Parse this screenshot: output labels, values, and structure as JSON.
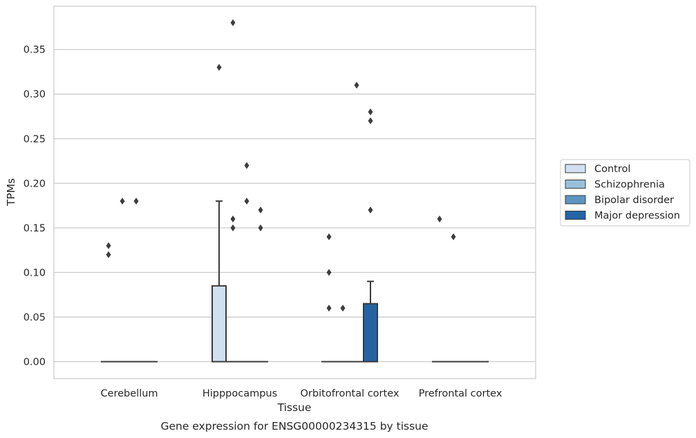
{
  "chart_data": {
    "type": "box",
    "title": "",
    "caption": "Gene expression for ENSG00000234315 by tissue",
    "xlabel": "Tissue",
    "ylabel": "TPMs",
    "ylim": [
      -0.018,
      0.397
    ],
    "yticks": [
      0.0,
      0.05,
      0.1,
      0.15,
      0.2,
      0.25,
      0.3,
      0.35
    ],
    "ytick_labels": [
      "0.00",
      "0.05",
      "0.10",
      "0.15",
      "0.20",
      "0.25",
      "0.30",
      "0.35"
    ],
    "categories": [
      "Cerebellum",
      "Hipppocampus",
      "Orbitofrontal cortex",
      "Prefrontal cortex"
    ],
    "grid": "horizontal",
    "legend_position": "right",
    "series": [
      {
        "name": "Control",
        "color": "#d0e0f0",
        "boxes": [
          {
            "q1": 0,
            "median": 0,
            "q3": 0,
            "whisker_low": 0,
            "whisker_high": 0,
            "outliers": [
              0.12,
              0.13
            ]
          },
          {
            "q1": 0,
            "median": 0,
            "q3": 0.085,
            "whisker_low": 0,
            "whisker_high": 0.18,
            "outliers": [
              0.33
            ]
          },
          {
            "q1": 0,
            "median": 0,
            "q3": 0,
            "whisker_low": 0,
            "whisker_high": 0,
            "outliers": [
              0.06,
              0.1,
              0.14
            ]
          },
          {
            "q1": 0,
            "median": 0,
            "q3": 0,
            "whisker_low": 0,
            "whisker_high": 0,
            "outliers": [
              0.16
            ]
          }
        ]
      },
      {
        "name": "Schizophrenia",
        "color": "#98c0da",
        "boxes": [
          {
            "q1": 0,
            "median": 0,
            "q3": 0,
            "whisker_low": 0,
            "whisker_high": 0,
            "outliers": [
              0.18
            ]
          },
          {
            "q1": 0,
            "median": 0,
            "q3": 0,
            "whisker_low": 0,
            "whisker_high": 0,
            "outliers": [
              0.15,
              0.16,
              0.38
            ]
          },
          {
            "q1": 0,
            "median": 0,
            "q3": 0,
            "whisker_low": 0,
            "whisker_high": 0,
            "outliers": [
              0.06
            ]
          },
          {
            "q1": 0,
            "median": 0,
            "q3": 0,
            "whisker_low": 0,
            "whisker_high": 0,
            "outliers": [
              0.14
            ]
          }
        ]
      },
      {
        "name": "Bipolar disorder",
        "color": "#5b96c2",
        "boxes": [
          {
            "q1": 0,
            "median": 0,
            "q3": 0,
            "whisker_low": 0,
            "whisker_high": 0,
            "outliers": [
              0.18
            ]
          },
          {
            "q1": 0,
            "median": 0,
            "q3": 0,
            "whisker_low": 0,
            "whisker_high": 0,
            "outliers": [
              0.18,
              0.22
            ]
          },
          {
            "q1": 0,
            "median": 0,
            "q3": 0,
            "whisker_low": 0,
            "whisker_high": 0,
            "outliers": [
              0.31
            ]
          },
          {
            "q1": 0,
            "median": 0,
            "q3": 0,
            "whisker_low": 0,
            "whisker_high": 0,
            "outliers": []
          }
        ]
      },
      {
        "name": "Major depression",
        "color": "#2464a4",
        "boxes": [
          {
            "q1": 0,
            "median": 0,
            "q3": 0,
            "whisker_low": 0,
            "whisker_high": 0,
            "outliers": []
          },
          {
            "q1": 0,
            "median": 0,
            "q3": 0,
            "whisker_low": 0,
            "whisker_high": 0,
            "outliers": [
              0.15,
              0.17
            ]
          },
          {
            "q1": 0,
            "median": 0,
            "q3": 0.065,
            "whisker_low": 0,
            "whisker_high": 0.09,
            "outliers": [
              0.17,
              0.27,
              0.28
            ]
          },
          {
            "q1": 0,
            "median": 0,
            "q3": 0,
            "whisker_low": 0,
            "whisker_high": 0,
            "outliers": []
          }
        ]
      }
    ]
  }
}
